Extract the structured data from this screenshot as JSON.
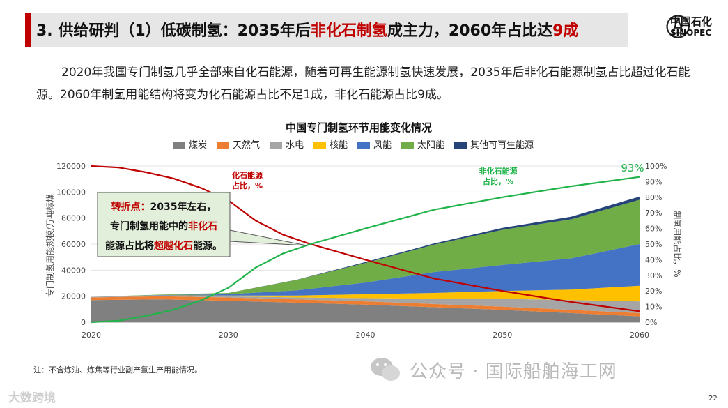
{
  "header": {
    "prefix": "3. 供给研判",
    "part1": "（1）低碳制氢：2035年后",
    "highlight1": "非化石制氢",
    "part2": "成主力，2060年占比达",
    "highlight2": "9成"
  },
  "logo": {
    "cn": "中国石化",
    "en": "SINOPEC"
  },
  "intro": "2020年我国专门制氢几乎全部来自化石能源，随着可再生能源制氢快速发展，2035年后非化石能源制氢占比超过化石能源。2060年制氢用能结构将变为化石能源占比不足1成，非化石能源占比9成。",
  "chart_data": {
    "type": "area",
    "title": "中国专门制氢环节用能变化情况",
    "ylabel": "专门制氢用能规模/万吨标煤",
    "y2label": "制氢用能占比，%",
    "x": [
      2020,
      2025,
      2030,
      2035,
      2040,
      2045,
      2050,
      2055,
      2060
    ],
    "ylim": [
      0,
      120000
    ],
    "y2lim": [
      0,
      100
    ],
    "y_ticks": [
      "0",
      "20000",
      "40000",
      "60000",
      "80000",
      "100000",
      "120000"
    ],
    "y2_ticks": [
      "0%",
      "10%",
      "20%",
      "30%",
      "40%",
      "50%",
      "60%",
      "70%",
      "80%",
      "90%",
      "100%"
    ],
    "x_ticks": [
      "2020",
      "2030",
      "2040",
      "2050",
      "2060"
    ],
    "series": [
      {
        "name": "煤炭",
        "color": "#808080",
        "values": [
          17000,
          17500,
          16500,
          15000,
          13500,
          11500,
          9500,
          7000,
          4500
        ]
      },
      {
        "name": "天然气",
        "color": "#ed7d31",
        "values": [
          2000,
          2500,
          2500,
          2500,
          2500,
          2500,
          2500,
          2500,
          2500
        ]
      },
      {
        "name": "水电",
        "color": "#a5a5a5",
        "values": [
          500,
          700,
          1000,
          1500,
          2500,
          4000,
          6000,
          7500,
          9000
        ]
      },
      {
        "name": "核能",
        "color": "#ffc000",
        "values": [
          0,
          0,
          500,
          1500,
          3000,
          4500,
          6000,
          8000,
          12000
        ]
      },
      {
        "name": "风能",
        "color": "#4472c4",
        "values": [
          0,
          200,
          1000,
          4000,
          9000,
          16000,
          20000,
          24000,
          32000
        ]
      },
      {
        "name": "太阳能",
        "color": "#70ad47",
        "values": [
          0,
          300,
          1000,
          8000,
          15000,
          21000,
          27000,
          30000,
          34000
        ]
      },
      {
        "name": "其他可再生能源",
        "color": "#264478",
        "values": [
          0,
          0,
          0,
          200,
          700,
          1000,
          1500,
          2000,
          2500
        ]
      }
    ],
    "lines": [
      {
        "name": "化石能源占比",
        "color": "#c00000",
        "x": [
          2020,
          2022,
          2024,
          2026,
          2028,
          2030,
          2032,
          2034,
          2036,
          2038,
          2040,
          2045,
          2050,
          2055,
          2060
        ],
        "values": [
          100,
          99,
          96,
          92,
          86,
          78,
          65,
          56,
          50,
          45,
          40,
          28,
          20,
          13,
          7
        ]
      },
      {
        "name": "非化石能源占比",
        "color": "#1fb34a",
        "x": [
          2020,
          2022,
          2024,
          2026,
          2028,
          2030,
          2032,
          2034,
          2036,
          2038,
          2040,
          2045,
          2050,
          2055,
          2060
        ],
        "values": [
          0,
          1,
          4,
          8,
          14,
          22,
          35,
          44,
          50,
          55,
          60,
          72,
          80,
          87,
          93
        ]
      }
    ],
    "annotations": {
      "fossil_label_1": "化石能源",
      "fossil_label_2": "占比，%",
      "nonfossil_label_1": "非化石能源",
      "nonfossil_label_2": "占比，%",
      "end_value": "93%"
    },
    "callout": {
      "line1_a": "转折点：",
      "line1_b": "2035年左右，",
      "line2_a": "专门制氢用能中的",
      "line2_b": "非化石",
      "line3_a": "能源占比将",
      "line3_b": "超越化石",
      "line3_c": "能源。"
    }
  },
  "footnote": "注：不含炼油、炼焦等行业副产氢生产用能情况。",
  "watermark": "公众号 · 国际船舶海工网",
  "watermark2": "大数跨境",
  "page_number": "22"
}
